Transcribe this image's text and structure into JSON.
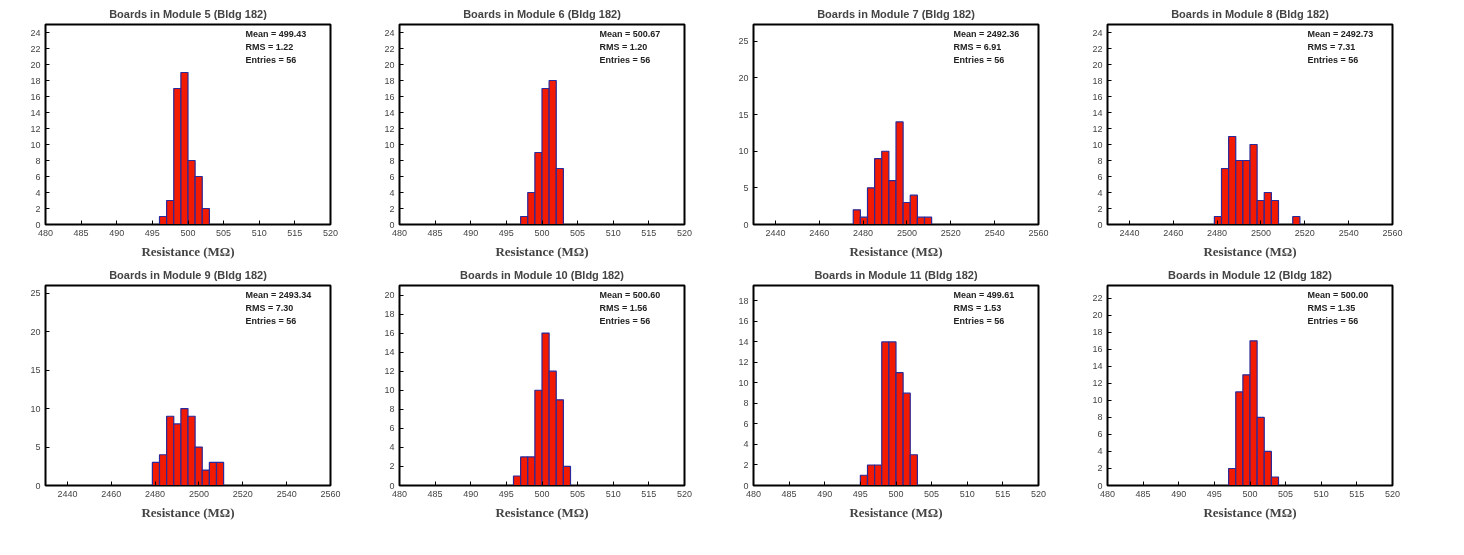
{
  "chart_data": [
    {
      "type": "histogram",
      "title": "Boards in Module 5 (Bldg 182)",
      "xlabel": "Resistance (MΩ)",
      "bins": [
        496,
        497,
        498,
        499,
        500,
        501,
        502,
        503
      ],
      "values": [
        1,
        3,
        17,
        19,
        8,
        6,
        2
      ],
      "color": "#f21a00",
      "xlim": [
        480,
        520
      ],
      "xticks": [
        480,
        485,
        490,
        495,
        500,
        505,
        510,
        515,
        520
      ],
      "ylim": [
        0,
        25
      ],
      "yticks": [
        0,
        2,
        4,
        6,
        8,
        10,
        12,
        14,
        16,
        18,
        20,
        22,
        24
      ],
      "annotations": [
        "Mean = 499.43",
        "RMS = 1.22",
        "Entries = 56"
      ]
    },
    {
      "type": "histogram",
      "title": "Boards in Module 6 (Bldg 182)",
      "xlabel": "Resistance (MΩ)",
      "bins": [
        497,
        498,
        499,
        500,
        501,
        502,
        503
      ],
      "values": [
        1,
        4,
        9,
        17,
        18,
        7
      ],
      "color": "#f21a00",
      "xlim": [
        480,
        520
      ],
      "xticks": [
        480,
        485,
        490,
        495,
        500,
        505,
        510,
        515,
        520
      ],
      "ylim": [
        0,
        25
      ],
      "yticks": [
        0,
        2,
        4,
        6,
        8,
        10,
        12,
        14,
        16,
        18,
        20,
        22,
        24
      ],
      "annotations": [
        "Mean = 500.67",
        "RMS = 1.20",
        "Entries = 56"
      ]
    },
    {
      "type": "histogram",
      "title": "Boards in Module 7 (Bldg 182)",
      "xlabel": "Resistance (MΩ)",
      "bins": [
        2475.5,
        2478.75,
        2482,
        2485.25,
        2488.5,
        2491.75,
        2495,
        2498.25,
        2501.5,
        2504.75,
        2508,
        2511.25
      ],
      "values": [
        2,
        1,
        5,
        9,
        10,
        6,
        14,
        3,
        4,
        1,
        1
      ],
      "color": "#f21a00",
      "xlim": [
        2430,
        2560
      ],
      "xticks": [
        2440,
        2460,
        2480,
        2500,
        2520,
        2540,
        2560
      ],
      "ylim": [
        0,
        27.3
      ],
      "yticks": [
        0,
        5,
        10,
        15,
        20,
        25
      ],
      "annotations": [
        "Mean = 2492.36",
        "RMS = 6.91",
        "Entries = 56"
      ]
    },
    {
      "type": "histogram",
      "title": "Boards in Module 8 (Bldg 182)",
      "xlabel": "Resistance (MΩ)",
      "bins": [
        2478.75,
        2482,
        2485.25,
        2488.5,
        2491.75,
        2495,
        2498.25,
        2501.5,
        2504.75,
        2508,
        2511.25,
        2514.5,
        2517.75
      ],
      "values": [
        1,
        7,
        11,
        8,
        8,
        10,
        3,
        4,
        3,
        0,
        0,
        1
      ],
      "color": "#f21a00",
      "xlim": [
        2430,
        2560
      ],
      "xticks": [
        2440,
        2460,
        2480,
        2500,
        2520,
        2540,
        2560
      ],
      "ylim": [
        0,
        25
      ],
      "yticks": [
        0,
        2,
        4,
        6,
        8,
        10,
        12,
        14,
        16,
        18,
        20,
        22,
        24
      ],
      "annotations": [
        "Mean = 2492.73",
        "RMS = 7.31",
        "Entries = 56"
      ]
    },
    {
      "type": "histogram",
      "title": "Boards in Module 9 (Bldg 182)",
      "xlabel": "Resistance (MΩ)",
      "bins": [
        2478.75,
        2482,
        2485.25,
        2488.5,
        2491.75,
        2495,
        2498.25,
        2501.5,
        2504.75,
        2508,
        2511.25
      ],
      "values": [
        3,
        4,
        9,
        8,
        10,
        9,
        5,
        2,
        3,
        3
      ],
      "color": "#f21a00",
      "xlim": [
        2430,
        2560
      ],
      "xticks": [
        2440,
        2460,
        2480,
        2500,
        2520,
        2540,
        2560
      ],
      "ylim": [
        0,
        26
      ],
      "yticks": [
        0,
        5,
        10,
        15,
        20,
        25
      ],
      "annotations": [
        "Mean = 2493.34",
        "RMS = 7.30",
        "Entries = 56"
      ]
    },
    {
      "type": "histogram",
      "title": "Boards in Module 10 (Bldg 182)",
      "xlabel": "Resistance (MΩ)",
      "bins": [
        496,
        497,
        498,
        499,
        500,
        501,
        502,
        503,
        504
      ],
      "values": [
        1,
        3,
        3,
        10,
        16,
        12,
        9,
        2
      ],
      "color": "#f21a00",
      "xlim": [
        480,
        520
      ],
      "xticks": [
        480,
        485,
        490,
        495,
        500,
        505,
        510,
        515,
        520
      ],
      "ylim": [
        0,
        21
      ],
      "yticks": [
        0,
        2,
        4,
        6,
        8,
        10,
        12,
        14,
        16,
        18,
        20
      ],
      "annotations": [
        "Mean = 500.60",
        "RMS = 1.56",
        "Entries = 56"
      ]
    },
    {
      "type": "histogram",
      "title": "Boards in Module 11 (Bldg 182)",
      "xlabel": "Resistance (MΩ)",
      "bins": [
        495,
        496,
        497,
        498,
        499,
        500,
        501,
        502,
        503
      ],
      "values": [
        1,
        2,
        2,
        14,
        14,
        11,
        9,
        3
      ],
      "color": "#f21a00",
      "xlim": [
        480,
        520
      ],
      "xticks": [
        480,
        485,
        490,
        495,
        500,
        505,
        510,
        515,
        520
      ],
      "ylim": [
        0,
        19.5
      ],
      "yticks": [
        0,
        2,
        4,
        6,
        8,
        10,
        12,
        14,
        16,
        18
      ],
      "annotations": [
        "Mean = 499.61",
        "RMS = 1.53",
        "Entries = 56"
      ]
    },
    {
      "type": "histogram",
      "title": "Boards in Module 12 (Bldg 182)",
      "xlabel": "Resistance (MΩ)",
      "bins": [
        497,
        498,
        499,
        500,
        501,
        502,
        503,
        504
      ],
      "values": [
        2,
        11,
        13,
        17,
        8,
        4,
        1
      ],
      "color": "#f21a00",
      "xlim": [
        480,
        520
      ],
      "xticks": [
        480,
        485,
        490,
        495,
        500,
        505,
        510,
        515,
        520
      ],
      "ylim": [
        0,
        23.5
      ],
      "yticks": [
        0,
        2,
        4,
        6,
        8,
        10,
        12,
        14,
        16,
        18,
        20,
        22
      ],
      "annotations": [
        "Mean = 500.00",
        "RMS = 1.35",
        "Entries = 56"
      ]
    }
  ]
}
